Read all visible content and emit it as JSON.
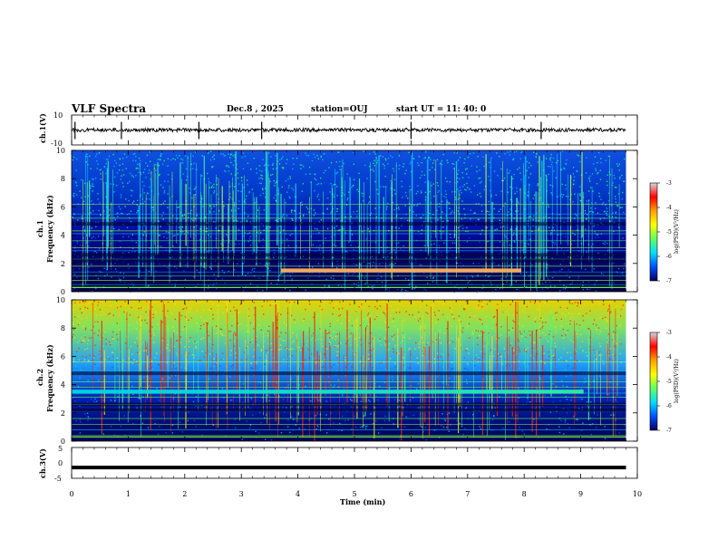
{
  "header": {
    "title": "VLF Spectra",
    "date": "Dec.8 , 2025",
    "station": "station=OUJ",
    "start_label": "start UT =",
    "start_time": "11: 40: 0"
  },
  "colorbar": {
    "label": "log(PSD)(V²/Hz)",
    "ticks": [
      "-3",
      "-4",
      "-5",
      "-6",
      "-7"
    ],
    "colors": [
      "#d8d8d8",
      "#ff0000",
      "#ffa000",
      "#ffff00",
      "#60ff60",
      "#00e0ff",
      "#0050ff",
      "#000060"
    ]
  },
  "chart_data": [
    {
      "type": "line",
      "title": "VLF Spectra",
      "panel": "ch1 waveform",
      "ylabel": "ch.1(V)",
      "ylim": [
        -10,
        10
      ],
      "y_ticks": [
        "10",
        "-10"
      ],
      "xlim": [
        0,
        10
      ],
      "x": [
        0,
        1,
        2,
        3,
        4,
        5,
        6,
        7,
        8,
        9,
        9.8
      ],
      "values": [
        0,
        0,
        0,
        0,
        0,
        0,
        0,
        0,
        0,
        0,
        0
      ],
      "spikes_min": [
        0.06,
        0.88,
        2.25,
        3.36,
        6.0,
        8.3
      ]
    },
    {
      "type": "heatmap",
      "panel": "ch1 spectrogram",
      "ylabel_top": "ch.1",
      "ylabel": "Frequency (kHz)",
      "ylim": [
        0,
        10
      ],
      "y_ticks": [
        "0",
        "2",
        "4",
        "6",
        "8",
        "10"
      ],
      "xlim": [
        0,
        10
      ],
      "data_end_min": 9.8,
      "z_range": [
        -7,
        -3
      ],
      "tone_lines_khz": [
        0.3,
        0.5,
        0.8,
        1.1,
        1.4,
        1.8,
        2.3,
        2.9,
        3.1,
        3.6,
        4.1,
        4.3,
        5.2,
        5.5,
        6.2
      ],
      "band_1_5khz_minutes": [
        3.7,
        7.95
      ]
    },
    {
      "type": "heatmap",
      "panel": "ch2 spectrogram",
      "ylabel_top": "ch.2",
      "ylabel": "Frequency (kHz)",
      "ylim": [
        0,
        10
      ],
      "y_ticks": [
        "0",
        "2",
        "4",
        "6",
        "8",
        "10"
      ],
      "xlim": [
        0,
        10
      ],
      "data_end_min": 9.8,
      "z_range": [
        -7,
        -3
      ],
      "tone_lines_khz": [
        0.4,
        0.8,
        1.2,
        1.6,
        2.1,
        2.6,
        3.1,
        3.4,
        3.8,
        4.2,
        5.0,
        5.6
      ],
      "band_3_4khz_minutes": [
        0,
        9.05
      ]
    },
    {
      "type": "line",
      "panel": "ch3 waveform",
      "ylabel": "ch.3(V)",
      "ylim": [
        -5,
        5
      ],
      "y_ticks": [
        "5",
        "0",
        "-5"
      ],
      "xlim": [
        0,
        10
      ],
      "x": [
        0,
        9.8
      ],
      "values": [
        -1.5,
        -1.5
      ],
      "xlabel": "Time (min)",
      "x_ticks": [
        "0",
        "1",
        "2",
        "3",
        "4",
        "5",
        "6",
        "7",
        "8",
        "9",
        "10"
      ]
    }
  ]
}
